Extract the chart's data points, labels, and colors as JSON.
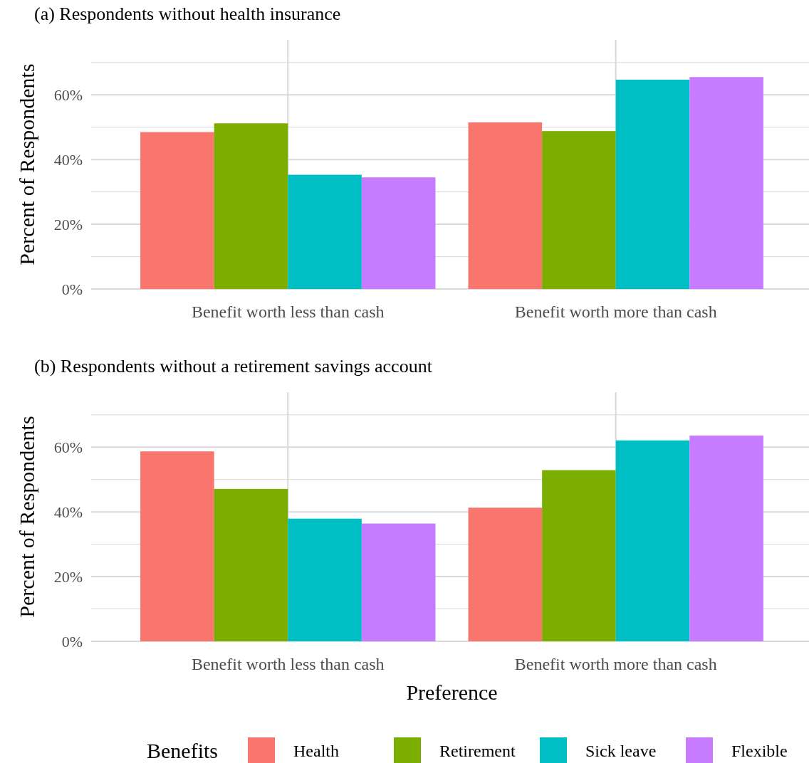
{
  "chart_data": [
    {
      "type": "bar",
      "title": "(a) Respondents without health insurance",
      "ylabel": "Percent of Respondents",
      "categories": [
        "Benefit worth less than cash",
        "Benefit worth more than cash"
      ],
      "series": [
        {
          "color": "#f8766d",
          "values": [
            48.5,
            51.5
          ]
        },
        {
          "color": "#7cae00",
          "values": [
            51.2,
            48.8
          ]
        },
        {
          "color": "#00bfc4",
          "values": [
            35.3,
            64.7
          ]
        },
        {
          "color": "#c77cff",
          "values": [
            34.5,
            65.5
          ]
        }
      ],
      "ylim": [
        0,
        77
      ],
      "yticks": [
        {
          "value": 0,
          "label": "0%"
        },
        {
          "value": 10,
          "label": null
        },
        {
          "value": 20,
          "label": "20%"
        },
        {
          "value": 30,
          "label": null
        },
        {
          "value": 40,
          "label": "40%"
        },
        {
          "value": 50,
          "label": null
        },
        {
          "value": 60,
          "label": "60%"
        },
        {
          "value": 70,
          "label": null
        }
      ],
      "grid": true,
      "legend": false
    },
    {
      "type": "bar",
      "title": "(b) Respondents without a retirement savings account",
      "ylabel": "Percent of Respondents",
      "xlabel": "Preference",
      "legend_title": "Benefits",
      "categories": [
        "Benefit worth less than cash",
        "Benefit worth more than cash"
      ],
      "series": [
        {
          "name": "Health",
          "color": "#f8766d",
          "values": [
            58.7,
            41.3
          ]
        },
        {
          "name": "Retirement",
          "color": "#7cae00",
          "values": [
            47.1,
            52.9
          ]
        },
        {
          "name": "Sick leave",
          "color": "#00bfc4",
          "values": [
            37.9,
            62.1
          ]
        },
        {
          "name": "Flexible",
          "color": "#c77cff",
          "values": [
            36.4,
            63.6
          ]
        }
      ],
      "ylim": [
        0,
        77
      ],
      "yticks": [
        {
          "value": 0,
          "label": "0%"
        },
        {
          "value": 10,
          "label": null
        },
        {
          "value": 20,
          "label": "20%"
        },
        {
          "value": 30,
          "label": null
        },
        {
          "value": 40,
          "label": "40%"
        },
        {
          "value": 50,
          "label": null
        },
        {
          "value": 60,
          "label": "60%"
        },
        {
          "value": 70,
          "label": null
        }
      ],
      "grid": true,
      "legend": "bottom"
    }
  ]
}
